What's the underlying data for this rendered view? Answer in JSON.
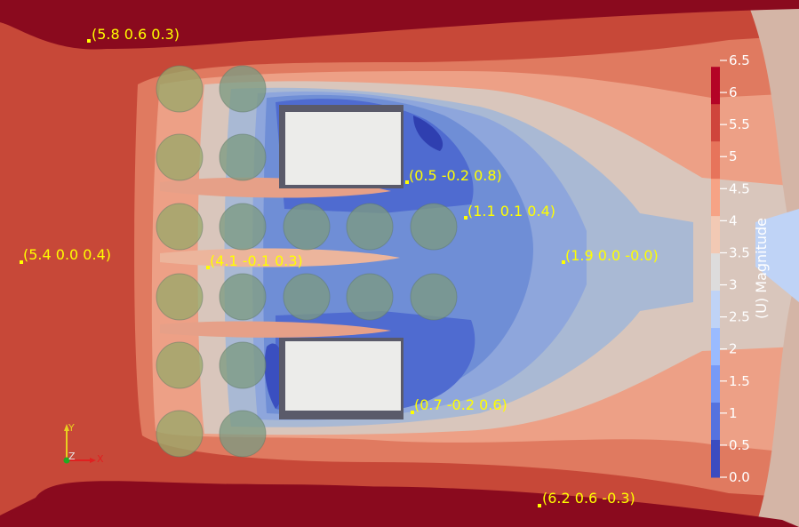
{
  "scalar_bar": {
    "title": "(U) Magnitude",
    "ticks": [
      "6.5",
      "6",
      "5.5",
      "5",
      "4.5",
      "4",
      "3.5",
      "3",
      "2.5",
      "2",
      "1.5",
      "1",
      "0.5",
      "0.0"
    ],
    "band_colors": [
      "#b40426",
      "#cf453c",
      "#e7745b",
      "#f6a385",
      "#f2c9b4",
      "#dddcdc",
      "#bfd3f6",
      "#9abbff",
      "#779af7",
      "#5572df",
      "#3b4cc0"
    ]
  },
  "probes": [
    {
      "label": "(5.8 0.6 0.3)"
    },
    {
      "label": "(0.5 -0.2 0.8)"
    },
    {
      "label": "(1.1 0.1 0.4)"
    },
    {
      "label": "(5.4 0.0 0.4)"
    },
    {
      "label": "(4.1 -0.1 0.3)"
    },
    {
      "label": "(1.9 0.0 -0.0)"
    },
    {
      "label": "(0.7 -0.2 0.6)"
    },
    {
      "label": "(6.2 0.6 -0.3)"
    }
  ],
  "orientation_axes": {
    "y": "Y",
    "z": "Z",
    "x": "X"
  },
  "colors": {
    "background": "#8a0a1e",
    "probe": "#ffff00"
  }
}
